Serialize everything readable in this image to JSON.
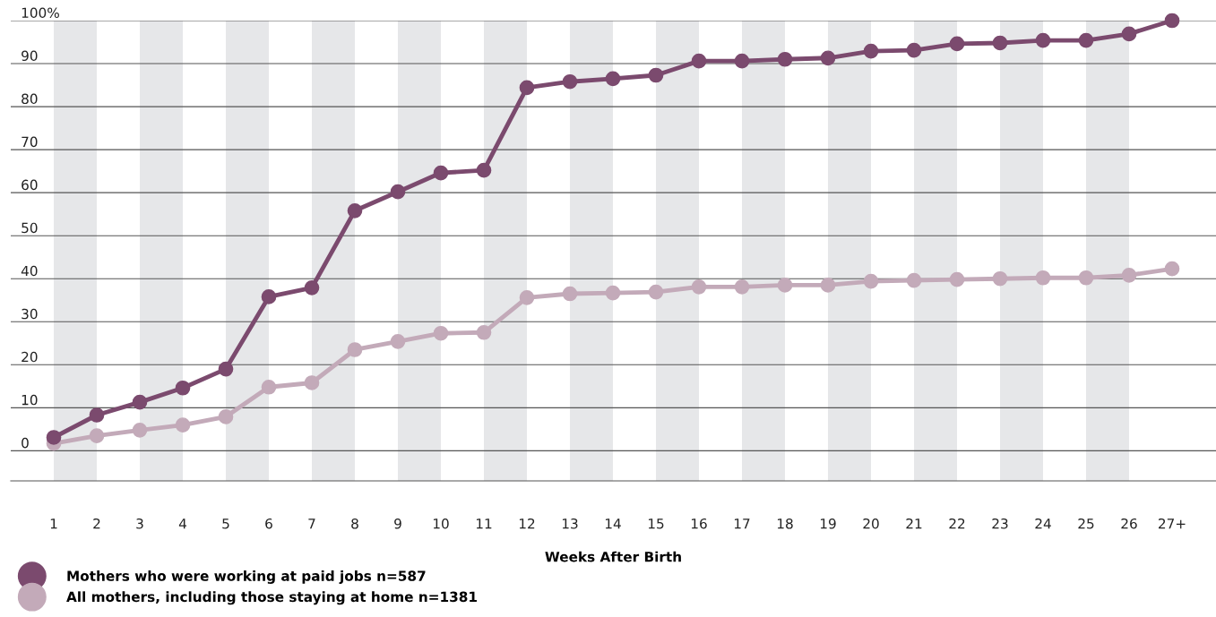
{
  "chart_data": {
    "type": "line",
    "xlabel": "Weeks After Birth",
    "categories": [
      "1",
      "2",
      "3",
      "4",
      "5",
      "6",
      "7",
      "8",
      "9",
      "10",
      "11",
      "12",
      "13",
      "14",
      "15",
      "16",
      "17",
      "18",
      "19",
      "20",
      "21",
      "22",
      "23",
      "24",
      "25",
      "26",
      "27+"
    ],
    "series": [
      {
        "name": "Mothers who were working at paid jobs n=587",
        "color": "#7b4a6e",
        "values": [
          3.1,
          8.3,
          11.3,
          14.6,
          19.0,
          35.8,
          37.9,
          55.8,
          60.2,
          64.6,
          65.2,
          84.4,
          85.8,
          86.5,
          87.3,
          90.6,
          90.6,
          91.0,
          91.3,
          92.9,
          93.1,
          94.6,
          94.8,
          95.4,
          95.4,
          96.9,
          100
        ]
      },
      {
        "name": "All mothers, including those staying at home n=1381",
        "color": "#c3aab9",
        "values": [
          1.7,
          3.5,
          4.8,
          6.0,
          7.9,
          14.8,
          15.8,
          23.5,
          25.4,
          27.3,
          27.5,
          35.6,
          36.5,
          36.7,
          36.9,
          38.1,
          38.1,
          38.5,
          38.5,
          39.4,
          39.6,
          39.8,
          40.0,
          40.2,
          40.2,
          40.8,
          42.3
        ]
      }
    ],
    "ylim": [
      -7,
      100
    ],
    "yticks": [
      0,
      10,
      20,
      30,
      40,
      50,
      60,
      70,
      80,
      90,
      {
        "value": 100,
        "label": "100%"
      }
    ],
    "grid": "y",
    "legend": "bottom left",
    "marker": "circle",
    "line_style": "solid",
    "bands": [
      {
        "axis": "x",
        "from": "1",
        "to": "2",
        "color": "#e6e7e9"
      },
      {
        "axis": "x",
        "from": "3",
        "to": "4",
        "color": "#e6e7e9"
      },
      {
        "axis": "x",
        "from": "5",
        "to": "6",
        "color": "#e6e7e9"
      },
      {
        "axis": "x",
        "from": "7",
        "to": "8",
        "color": "#e6e7e9"
      },
      {
        "axis": "x",
        "from": "9",
        "to": "10",
        "color": "#e6e7e9"
      },
      {
        "axis": "x",
        "from": "11",
        "to": "12",
        "color": "#e6e7e9"
      },
      {
        "axis": "x",
        "from": "13",
        "to": "14",
        "color": "#e6e7e9"
      },
      {
        "axis": "x",
        "from": "15",
        "to": "16",
        "color": "#e6e7e9"
      },
      {
        "axis": "x",
        "from": "17",
        "to": "18",
        "color": "#e6e7e9"
      },
      {
        "axis": "x",
        "from": "19",
        "to": "20",
        "color": "#e6e7e9"
      },
      {
        "axis": "x",
        "from": "21",
        "to": "22",
        "color": "#e6e7e9"
      },
      {
        "axis": "x",
        "from": "23",
        "to": "24",
        "color": "#e6e7e9"
      },
      {
        "axis": "x",
        "from": "25",
        "to": "26",
        "color": "#e6e7e9"
      }
    ]
  }
}
